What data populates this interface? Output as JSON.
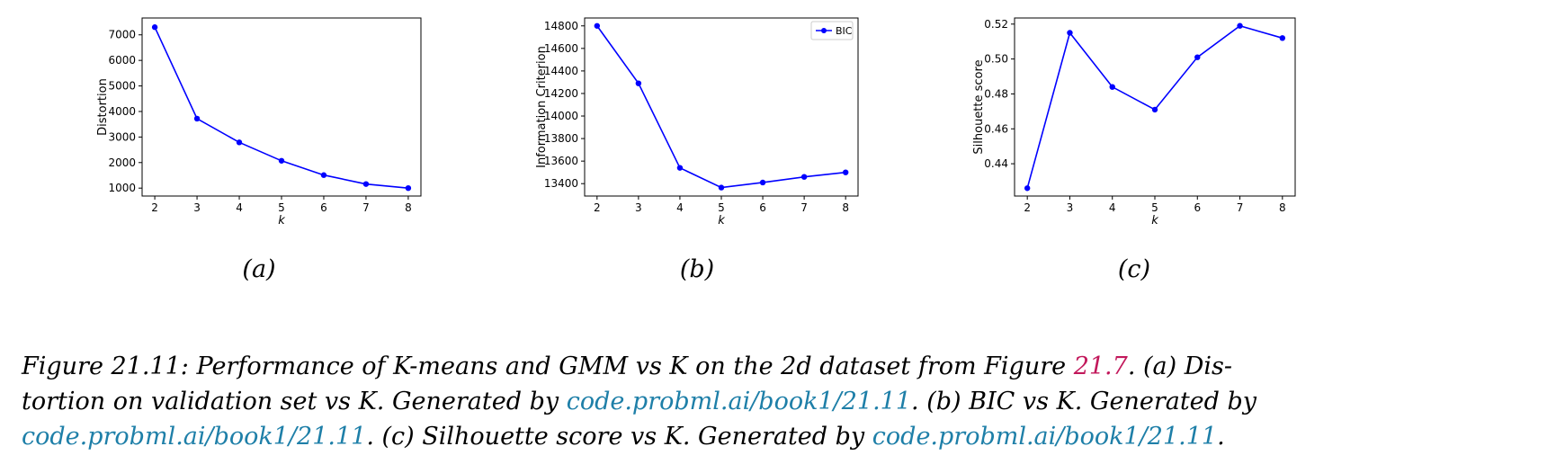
{
  "chart_data": [
    {
      "type": "line",
      "x": [
        2,
        3,
        4,
        5,
        6,
        7,
        8
      ],
      "series": [
        {
          "values": [
            7300,
            3720,
            2790,
            2070,
            1510,
            1160,
            1000
          ]
        }
      ],
      "xlabel": "k",
      "ylabel": "Distortion",
      "xticks": [
        "2",
        "3",
        "4",
        "5",
        "6",
        "7",
        "8"
      ],
      "yticks": [
        "1000",
        "2000",
        "3000",
        "4000",
        "5000",
        "6000",
        "7000"
      ],
      "ylim": [
        690,
        7660
      ],
      "xlim": [
        1.7,
        8.3
      ],
      "color": "#0000ff",
      "sublabel": "(a)"
    },
    {
      "type": "line",
      "x": [
        2,
        3,
        4,
        5,
        6,
        7,
        8
      ],
      "series": [
        {
          "name": "BIC",
          "values": [
            14800,
            14290,
            13540,
            13365,
            13410,
            13460,
            13500
          ]
        }
      ],
      "xlabel": "k",
      "ylabel": "Information Criterion",
      "xticks": [
        "2",
        "3",
        "4",
        "5",
        "6",
        "7",
        "8"
      ],
      "yticks": [
        "13400",
        "13600",
        "13800",
        "14000",
        "14200",
        "14400",
        "14600",
        "14800"
      ],
      "ylim": [
        13290,
        14870
      ],
      "xlim": [
        1.7,
        8.3
      ],
      "legend": "top-right",
      "color": "#0000ff",
      "sublabel": "(b)"
    },
    {
      "type": "line",
      "x": [
        2,
        3,
        4,
        5,
        6,
        7,
        8
      ],
      "series": [
        {
          "values": [
            0.426,
            0.515,
            0.484,
            0.471,
            0.501,
            0.519,
            0.512
          ]
        }
      ],
      "xlabel": "k",
      "ylabel": "Silhouette score",
      "xticks": [
        "2",
        "3",
        "4",
        "5",
        "6",
        "7",
        "8"
      ],
      "yticks": [
        "0.44",
        "0.46",
        "0.48",
        "0.50",
        "0.52"
      ],
      "ylim": [
        0.4215,
        0.5235
      ],
      "xlim": [
        1.7,
        8.3
      ],
      "color": "#0000ff",
      "sublabel": "(c)"
    }
  ],
  "caption": {
    "line1": [
      {
        "t": "Figure 21.11: Performance of K-means and GMM vs K on the 2d dataset from Figure ",
        "c": ""
      },
      {
        "t": "21.7",
        "c": "ref"
      },
      {
        "t": ". (a) Dis-",
        "c": ""
      }
    ],
    "line2": [
      {
        "t": "tortion on validation set vs K. Generated by ",
        "c": ""
      },
      {
        "t": "code.probml.ai/book1/21.11",
        "c": "link"
      },
      {
        "t": ". (b) BIC vs K. Generated by",
        "c": ""
      }
    ],
    "line3": [
      {
        "t": "code.probml.ai/book1/21.11",
        "c": "link"
      },
      {
        "t": ". (c) Silhouette score vs K. Generated by ",
        "c": ""
      },
      {
        "t": "code.probml.ai/book1/21.11",
        "c": "link"
      },
      {
        "t": ".",
        "c": ""
      }
    ]
  }
}
